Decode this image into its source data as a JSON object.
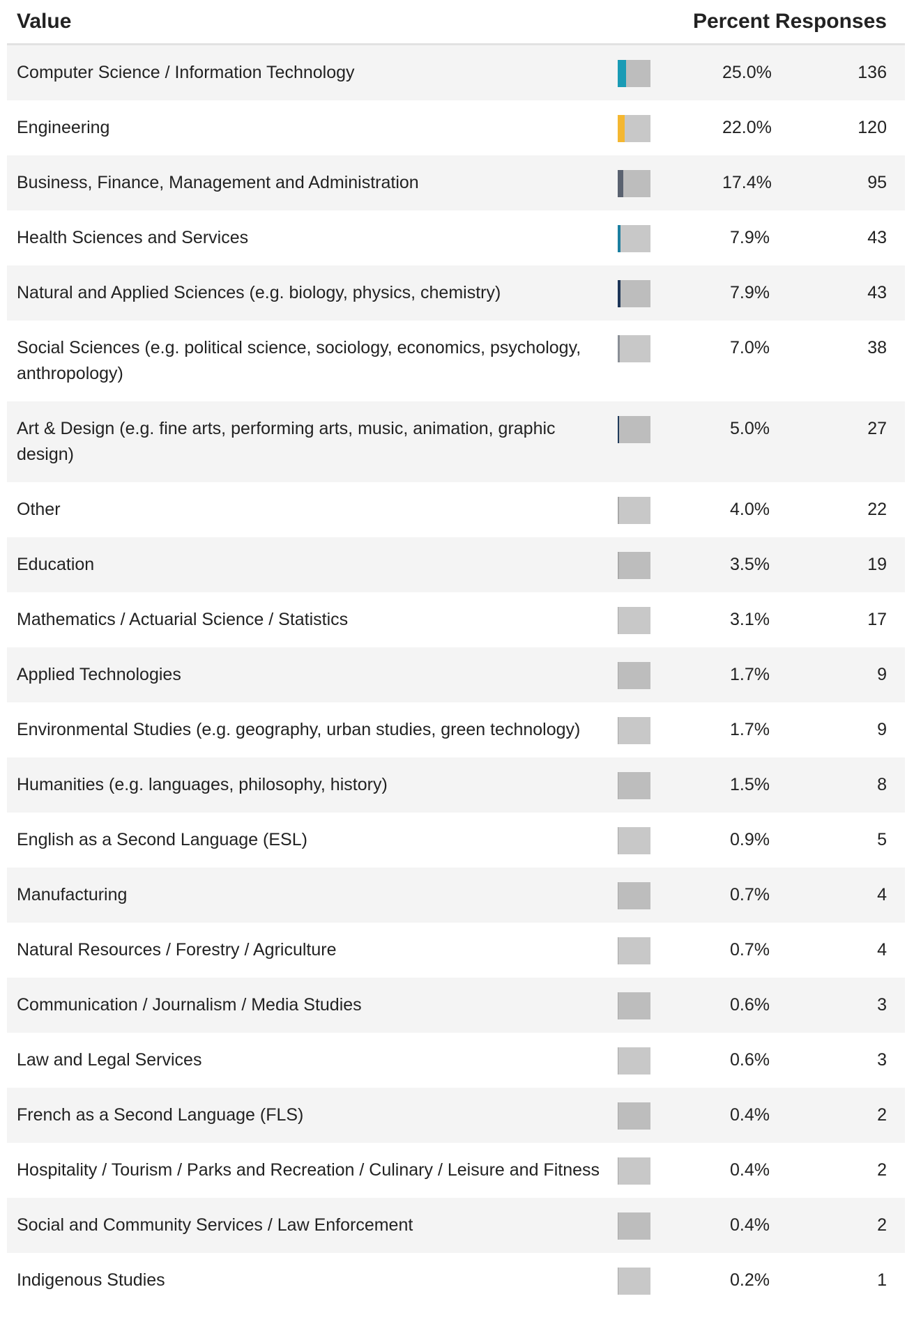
{
  "table": {
    "headers": {
      "value": "Value",
      "percent": "Percent",
      "responses": "Responses"
    },
    "rows": [
      {
        "label": "Computer Science / Information Technology",
        "percent": 25.0,
        "percent_label": "25.0%",
        "responses": 136,
        "color": "#1a9bb5"
      },
      {
        "label": "Engineering",
        "percent": 22.0,
        "percent_label": "22.0%",
        "responses": 120,
        "color": "#f4b731"
      },
      {
        "label": "Business, Finance, Management and Administration",
        "percent": 17.4,
        "percent_label": "17.4%",
        "responses": 95,
        "color": "#5a6270"
      },
      {
        "label": "Health Sciences and Services",
        "percent": 7.9,
        "percent_label": "7.9%",
        "responses": 43,
        "color": "#1b7fa0"
      },
      {
        "label": "Natural and Applied Sciences (e.g. biology, physics, chemistry)",
        "percent": 7.9,
        "percent_label": "7.9%",
        "responses": 43,
        "color": "#1d3557"
      },
      {
        "label": "Social Sciences (e.g. political science, sociology, economics, psychology, anthropology)",
        "percent": 7.0,
        "percent_label": "7.0%",
        "responses": 38,
        "color": "#8a8f96"
      },
      {
        "label": "Art & Design (e.g. fine arts, performing arts, music, animation, graphic design)",
        "percent": 5.0,
        "percent_label": "5.0%",
        "responses": 27,
        "color": "#1f3a5a"
      },
      {
        "label": "Other",
        "percent": 4.0,
        "percent_label": "4.0%",
        "responses": 22,
        "color": "#a8a8a8"
      },
      {
        "label": "Education",
        "percent": 3.5,
        "percent_label": "3.5%",
        "responses": 19,
        "color": "#a8a8a8"
      },
      {
        "label": "Mathematics / Actuarial Science / Statistics",
        "percent": 3.1,
        "percent_label": "3.1%",
        "responses": 17,
        "color": "#a8a8a8"
      },
      {
        "label": "Applied Technologies",
        "percent": 1.7,
        "percent_label": "1.7%",
        "responses": 9,
        "color": "#a8a8a8"
      },
      {
        "label": "Environmental Studies (e.g. geography, urban studies, green technology)",
        "percent": 1.7,
        "percent_label": "1.7%",
        "responses": 9,
        "color": "#a8a8a8"
      },
      {
        "label": "Humanities (e.g. languages, philosophy, history)",
        "percent": 1.5,
        "percent_label": "1.5%",
        "responses": 8,
        "color": "#a8a8a8"
      },
      {
        "label": "English as a Second Language (ESL)",
        "percent": 0.9,
        "percent_label": "0.9%",
        "responses": 5,
        "color": "#a8a8a8"
      },
      {
        "label": "Manufacturing",
        "percent": 0.7,
        "percent_label": "0.7%",
        "responses": 4,
        "color": "#a8a8a8"
      },
      {
        "label": "Natural Resources / Forestry / Agriculture",
        "percent": 0.7,
        "percent_label": "0.7%",
        "responses": 4,
        "color": "#a8a8a8"
      },
      {
        "label": "Communication / Journalism / Media Studies",
        "percent": 0.6,
        "percent_label": "0.6%",
        "responses": 3,
        "color": "#a8a8a8"
      },
      {
        "label": "Law and Legal Services",
        "percent": 0.6,
        "percent_label": "0.6%",
        "responses": 3,
        "color": "#a8a8a8"
      },
      {
        "label": "French as a Second Language (FLS)",
        "percent": 0.4,
        "percent_label": "0.4%",
        "responses": 2,
        "color": "#a8a8a8"
      },
      {
        "label": "Hospitality / Tourism / Parks and Recreation / Culinary / Leisure and Fitness",
        "percent": 0.4,
        "percent_label": "0.4%",
        "responses": 2,
        "color": "#a8a8a8"
      },
      {
        "label": "Social and Community Services / Law Enforcement",
        "percent": 0.4,
        "percent_label": "0.4%",
        "responses": 2,
        "color": "#a8a8a8"
      },
      {
        "label": "Indigenous Studies",
        "percent": 0.2,
        "percent_label": "0.2%",
        "responses": 1,
        "color": "#a8a8a8"
      }
    ]
  }
}
